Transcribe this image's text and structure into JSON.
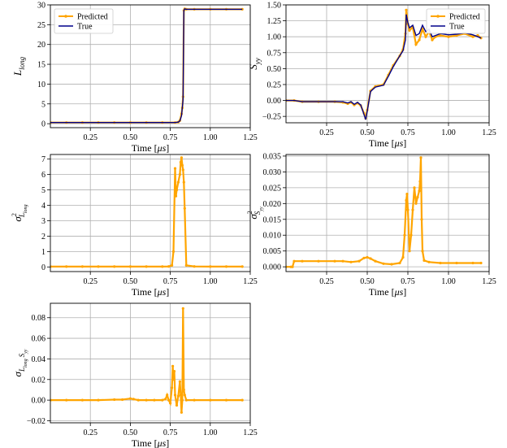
{
  "chart_data": [
    {
      "type": "line",
      "ylabel_main": "L",
      "ylabel_sub": "long",
      "ylabel_sup": "",
      "xlabel": "Time [μs]",
      "xlim": [
        0.0,
        1.25
      ],
      "ylim": [
        -1.0,
        30.0
      ],
      "xticks": [
        "0.25",
        "0.50",
        "0.75",
        "1.00",
        "1.25"
      ],
      "yticks": [
        "0",
        "5",
        "10",
        "15",
        "20",
        "25",
        "30"
      ],
      "legend": {
        "position": "top-left",
        "entries": [
          "Predicted",
          "True"
        ]
      },
      "series": [
        {
          "name": "Predicted",
          "color": "#FFA500",
          "markers": true,
          "x": [
            0.0,
            0.1,
            0.2,
            0.3,
            0.4,
            0.5,
            0.6,
            0.7,
            0.78,
            0.8,
            0.81,
            0.82,
            0.825,
            0.83,
            0.835,
            0.84,
            0.85,
            0.9,
            1.0,
            1.1,
            1.2
          ],
          "y": [
            0.3,
            0.3,
            0.3,
            0.3,
            0.3,
            0.3,
            0.3,
            0.3,
            0.3,
            0.4,
            0.8,
            2.5,
            4.0,
            6.8,
            28.6,
            29.0,
            28.9,
            28.9,
            28.9,
            28.9,
            28.9
          ]
        },
        {
          "name": "True",
          "color": "#00008B",
          "markers": false,
          "x": [
            0.0,
            0.1,
            0.2,
            0.3,
            0.4,
            0.5,
            0.6,
            0.7,
            0.78,
            0.8,
            0.81,
            0.82,
            0.83,
            0.835,
            0.84,
            0.85,
            0.9,
            1.0,
            1.1,
            1.2
          ],
          "y": [
            0.3,
            0.3,
            0.3,
            0.3,
            0.3,
            0.3,
            0.3,
            0.3,
            0.3,
            0.4,
            0.7,
            2.0,
            6.0,
            28.6,
            29.0,
            28.9,
            28.9,
            28.9,
            28.9,
            28.9
          ]
        }
      ]
    },
    {
      "type": "line",
      "ylabel_main": "S",
      "ylabel_sub": "yy",
      "ylabel_sup": "",
      "xlabel": "Time [μs]",
      "xlim": [
        0.0,
        1.25
      ],
      "ylim": [
        -0.35,
        1.5
      ],
      "xticks": [
        "0.25",
        "0.50",
        "0.75",
        "1.00",
        "1.25"
      ],
      "yticks": [
        "−0.25",
        "0.00",
        "0.25",
        "0.50",
        "0.75",
        "1.00",
        "1.25",
        "1.50"
      ],
      "legend": {
        "position": "top-right",
        "entries": [
          "Predicted",
          "True"
        ]
      },
      "series": [
        {
          "name": "Predicted",
          "color": "#FFA500",
          "markers": true,
          "x": [
            0.0,
            0.05,
            0.1,
            0.2,
            0.3,
            0.35,
            0.38,
            0.4,
            0.42,
            0.44,
            0.46,
            0.48,
            0.49,
            0.5,
            0.52,
            0.55,
            0.6,
            0.63,
            0.66,
            0.7,
            0.72,
            0.735,
            0.74,
            0.75,
            0.76,
            0.78,
            0.8,
            0.82,
            0.84,
            0.86,
            0.88,
            0.9,
            0.92,
            0.95,
            1.0,
            1.05,
            1.1,
            1.15,
            1.18,
            1.2
          ],
          "y": [
            0.0,
            0.0,
            -0.02,
            -0.02,
            -0.02,
            -0.03,
            -0.05,
            -0.03,
            -0.07,
            -0.04,
            -0.08,
            -0.2,
            -0.28,
            -0.15,
            0.15,
            0.22,
            0.25,
            0.4,
            0.55,
            0.7,
            0.8,
            1.05,
            1.42,
            1.2,
            1.1,
            1.15,
            0.88,
            0.95,
            1.12,
            1.0,
            1.08,
            0.95,
            1.0,
            1.02,
            1.0,
            1.02,
            1.05,
            1.0,
            1.02,
            0.98
          ]
        },
        {
          "name": "True",
          "color": "#00008B",
          "markers": false,
          "x": [
            0.0,
            0.05,
            0.1,
            0.2,
            0.3,
            0.35,
            0.38,
            0.4,
            0.42,
            0.44,
            0.46,
            0.48,
            0.49,
            0.5,
            0.52,
            0.55,
            0.6,
            0.63,
            0.66,
            0.7,
            0.72,
            0.735,
            0.74,
            0.75,
            0.76,
            0.78,
            0.8,
            0.82,
            0.84,
            0.86,
            0.88,
            0.9,
            0.92,
            0.95,
            1.0,
            1.05,
            1.1,
            1.15,
            1.18,
            1.2
          ],
          "y": [
            0.0,
            0.0,
            -0.02,
            -0.02,
            -0.02,
            -0.02,
            -0.04,
            -0.02,
            -0.06,
            -0.03,
            -0.07,
            -0.22,
            -0.3,
            -0.17,
            0.14,
            0.21,
            0.24,
            0.38,
            0.53,
            0.7,
            0.78,
            0.95,
            1.35,
            1.22,
            1.14,
            1.18,
            1.02,
            1.05,
            1.18,
            1.08,
            1.12,
            1.0,
            1.02,
            1.05,
            1.03,
            1.04,
            1.06,
            1.03,
            1.0,
            0.98
          ]
        }
      ]
    },
    {
      "type": "line",
      "ylabel_main": "σ",
      "ylabel_sub": "L",
      "ylabel_subsub": "long",
      "ylabel_sup": "2",
      "xlabel": "Time [μs]",
      "xlim": [
        0.0,
        1.25
      ],
      "ylim": [
        -0.3,
        7.3
      ],
      "xticks": [
        "0.25",
        "0.50",
        "0.75",
        "1.00",
        "1.25"
      ],
      "yticks": [
        "0",
        "1",
        "2",
        "3",
        "4",
        "5",
        "6",
        "7"
      ],
      "series": [
        {
          "name": "",
          "color": "#FFA500",
          "markers": true,
          "x": [
            0.0,
            0.1,
            0.2,
            0.3,
            0.4,
            0.5,
            0.6,
            0.7,
            0.74,
            0.76,
            0.77,
            0.78,
            0.785,
            0.79,
            0.8,
            0.81,
            0.815,
            0.82,
            0.825,
            0.83,
            0.835,
            0.84,
            0.85,
            0.9,
            1.0,
            1.1,
            1.2
          ],
          "y": [
            0.02,
            0.02,
            0.02,
            0.02,
            0.02,
            0.02,
            0.02,
            0.02,
            0.03,
            0.1,
            1.0,
            6.4,
            4.6,
            5.0,
            5.5,
            6.0,
            6.8,
            7.1,
            6.6,
            6.3,
            5.5,
            3.8,
            0.1,
            0.03,
            0.02,
            0.02,
            0.02
          ]
        }
      ]
    },
    {
      "type": "line",
      "ylabel_main": "σ",
      "ylabel_sub": "S",
      "ylabel_subsub": "yy",
      "ylabel_sup": "2",
      "xlabel": "Time [μs]",
      "xlim": [
        0.0,
        1.25
      ],
      "ylim": [
        -0.0015,
        0.0355
      ],
      "xticks": [
        "0.25",
        "0.50",
        "0.75",
        "1.00",
        "1.25"
      ],
      "yticks": [
        "0.000",
        "0.005",
        "0.010",
        "0.015",
        "0.020",
        "0.025",
        "0.030",
        "0.035"
      ],
      "series": [
        {
          "name": "",
          "color": "#FFA500",
          "markers": true,
          "x": [
            0.0,
            0.03,
            0.04,
            0.05,
            0.1,
            0.2,
            0.3,
            0.35,
            0.4,
            0.45,
            0.48,
            0.5,
            0.52,
            0.55,
            0.6,
            0.65,
            0.7,
            0.72,
            0.73,
            0.74,
            0.745,
            0.75,
            0.76,
            0.77,
            0.78,
            0.79,
            0.8,
            0.81,
            0.82,
            0.825,
            0.83,
            0.835,
            0.84,
            0.85,
            0.88,
            0.95,
            1.05,
            1.15,
            1.2
          ],
          "y": [
            0.0,
            0.0,
            0.0,
            0.0018,
            0.0018,
            0.0018,
            0.0018,
            0.0018,
            0.0015,
            0.0018,
            0.0028,
            0.003,
            0.0026,
            0.0018,
            0.001,
            0.0008,
            0.0012,
            0.003,
            0.01,
            0.021,
            0.023,
            0.018,
            0.005,
            0.01,
            0.018,
            0.025,
            0.02,
            0.022,
            0.024,
            0.027,
            0.0345,
            0.015,
            0.005,
            0.002,
            0.0015,
            0.0012,
            0.0012,
            0.0012,
            0.0012
          ]
        }
      ]
    },
    {
      "type": "line",
      "ylabel_main": "σ",
      "ylabel_sub": "L",
      "ylabel_subsub": "long",
      "ylabel_sub2": "S",
      "ylabel_subsub2": "yy",
      "xlabel": "Time [μs]",
      "xlim": [
        0.0,
        1.25
      ],
      "ylim": [
        -0.022,
        0.094
      ],
      "xticks": [
        "0.25",
        "0.50",
        "0.75",
        "1.00",
        "1.25"
      ],
      "yticks": [
        "−0.02",
        "0.00",
        "0.02",
        "0.04",
        "0.06",
        "0.08"
      ],
      "series": [
        {
          "name": "",
          "color": "#FFA500",
          "markers": true,
          "x": [
            0.0,
            0.1,
            0.2,
            0.3,
            0.4,
            0.45,
            0.5,
            0.52,
            0.55,
            0.6,
            0.65,
            0.7,
            0.72,
            0.73,
            0.74,
            0.75,
            0.76,
            0.765,
            0.77,
            0.775,
            0.78,
            0.79,
            0.8,
            0.81,
            0.815,
            0.82,
            0.825,
            0.83,
            0.835,
            0.84,
            0.85,
            0.9,
            1.0,
            1.1,
            1.2
          ],
          "y": [
            0.0,
            0.0,
            0.0,
            0.0,
            0.0005,
            0.0005,
            0.0015,
            0.001,
            0.0,
            0.0,
            0.0,
            0.0,
            0.001,
            0.005,
            0.0,
            -0.003,
            0.012,
            0.033,
            0.02,
            0.028,
            0.005,
            -0.005,
            0.004,
            0.018,
            0.005,
            -0.012,
            0.0,
            0.089,
            0.01,
            0.005,
            0.0,
            0.0,
            0.0,
            0.0,
            0.0
          ]
        }
      ]
    }
  ]
}
